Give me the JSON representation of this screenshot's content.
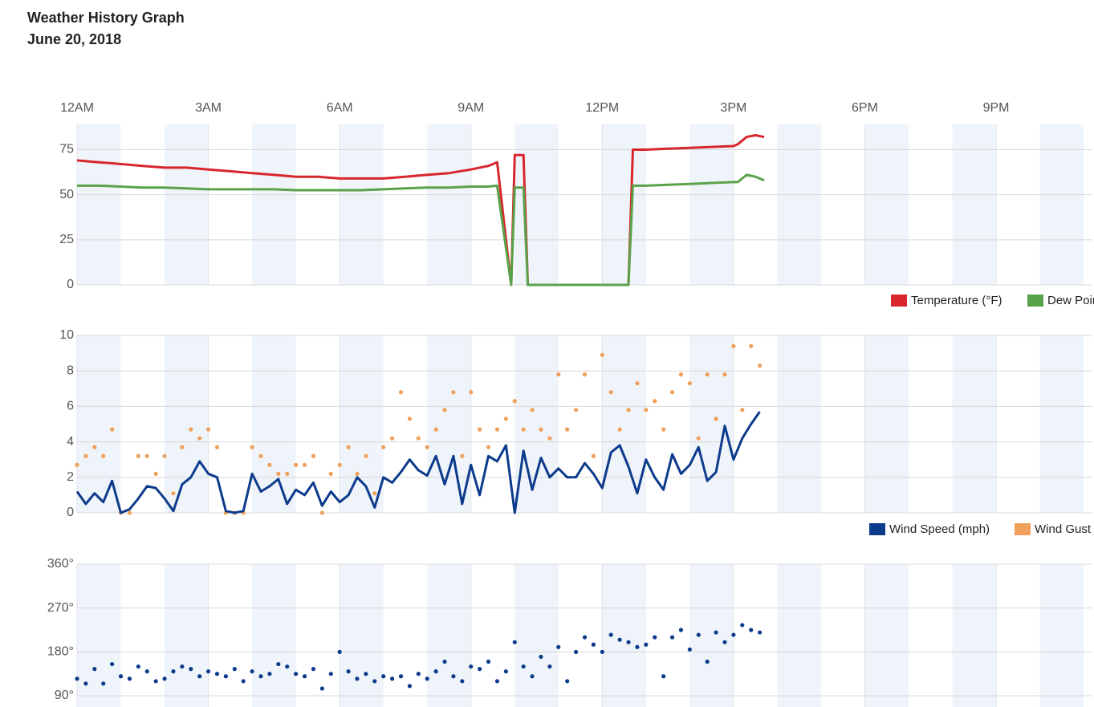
{
  "chart_data": [
    {
      "type": "line",
      "title": "Weather History Graph",
      "subtitle": "June 20, 2018",
      "x": [
        0,
        0.5,
        1,
        1.5,
        2,
        2.5,
        3,
        3.5,
        4,
        4.5,
        5,
        5.5,
        6,
        6.5,
        7,
        7.5,
        8,
        8.5,
        9,
        9.4,
        9.6,
        9.92,
        10.0,
        10.1,
        10.2,
        10.3,
        11,
        12,
        12.6,
        12.7,
        13,
        13.5,
        14,
        14.5,
        15,
        15.1,
        15.3,
        15.5,
        15.7
      ],
      "series": [
        {
          "name": "Temperature (°F)",
          "color": "#d9262c",
          "values": [
            69,
            68,
            67,
            66,
            65,
            65,
            64,
            63,
            62,
            61,
            60,
            60,
            59,
            59,
            59,
            60,
            61,
            62,
            64,
            66,
            68,
            0,
            72,
            72,
            72,
            0,
            0,
            0,
            0,
            75,
            75,
            75.5,
            76,
            76.5,
            77,
            78,
            82,
            83,
            82
          ]
        },
        {
          "name": "Dew Point",
          "color": "#5aa24a",
          "values": [
            55,
            55,
            54.5,
            54,
            54,
            53.5,
            53,
            53,
            53,
            53,
            52.5,
            52.5,
            52.5,
            52.5,
            53,
            53.5,
            54,
            54,
            54.5,
            54.5,
            55,
            0,
            54,
            54,
            54,
            0,
            0,
            0,
            0,
            55,
            55,
            55.5,
            56,
            56.5,
            57,
            57,
            61,
            60,
            58
          ]
        }
      ],
      "xlim": [
        0,
        23.2
      ],
      "xticks": [
        {
          "value": 0,
          "label": "12AM"
        },
        {
          "value": 3,
          "label": "3AM"
        },
        {
          "value": 6,
          "label": "6AM"
        },
        {
          "value": 9,
          "label": "9AM"
        },
        {
          "value": 12,
          "label": "12PM"
        },
        {
          "value": 15,
          "label": "3PM"
        },
        {
          "value": 18,
          "label": "6PM"
        },
        {
          "value": 21,
          "label": "9PM"
        }
      ],
      "ylim": [
        0,
        89
      ],
      "yticks": [
        0,
        25,
        50,
        75
      ],
      "grid": true,
      "legend": "bottom-right"
    },
    {
      "type": "line-scatter",
      "x": [
        0,
        0.2,
        0.4,
        0.6,
        0.8,
        1,
        1.2,
        1.4,
        1.6,
        1.8,
        2,
        2.2,
        2.4,
        2.6,
        2.8,
        3,
        3.2,
        3.4,
        3.6,
        3.8,
        4,
        4.2,
        4.4,
        4.6,
        4.8,
        5,
        5.2,
        5.4,
        5.6,
        5.8,
        6,
        6.2,
        6.4,
        6.6,
        6.8,
        7,
        7.2,
        7.4,
        7.6,
        7.8,
        8,
        8.2,
        8.4,
        8.6,
        8.8,
        9,
        9.2,
        9.4,
        9.6,
        9.8,
        10,
        10.2,
        10.4,
        10.6,
        10.8,
        11,
        11.2,
        11.4,
        11.6,
        11.8,
        12,
        12.2,
        12.4,
        12.6,
        12.8,
        13,
        13.2,
        13.4,
        13.6,
        13.8,
        14,
        14.2,
        14.4,
        14.6,
        14.8,
        15,
        15.2,
        15.4,
        15.6
      ],
      "series": [
        {
          "name": "Wind Speed (mph)",
          "color": "#0d3b8c",
          "values": [
            1.2,
            0.5,
            1.1,
            0.6,
            1.8,
            0,
            0.2,
            0.8,
            1.5,
            1.4,
            0.8,
            0.1,
            1.6,
            2,
            2.9,
            2.2,
            2,
            0.1,
            0,
            0.1,
            2.2,
            1.2,
            1.5,
            1.9,
            0.5,
            1.3,
            1,
            1.7,
            0.4,
            1.2,
            0.6,
            1,
            2,
            1.5,
            0.3,
            2,
            1.7,
            2.3,
            3,
            2.4,
            2.1,
            3.2,
            1.6,
            3.2,
            0.5,
            2.7,
            1,
            3.2,
            2.9,
            3.8,
            0,
            3.5,
            1.3,
            3.1,
            2,
            2.5,
            2,
            2,
            2.8,
            2.2,
            1.4,
            3.4,
            3.8,
            2.6,
            1.1,
            3,
            2,
            1.3,
            3.3,
            2.2,
            2.7,
            3.7,
            1.8,
            2.3,
            4.9,
            3,
            4.2,
            5,
            5.7
          ]
        },
        {
          "name": "Wind Gust",
          "color": "#f0a05a",
          "values": [
            2.7,
            3.2,
            3.7,
            3.2,
            4.7,
            0,
            0,
            3.2,
            3.2,
            2.2,
            3.2,
            1.1,
            3.7,
            4.7,
            4.2,
            4.7,
            3.7,
            0,
            0,
            0,
            3.7,
            3.2,
            2.7,
            2.2,
            2.2,
            2.7,
            2.7,
            3.2,
            0,
            2.2,
            2.7,
            3.7,
            2.2,
            3.2,
            1.1,
            3.7,
            4.2,
            6.8,
            5.3,
            4.2,
            3.7,
            4.7,
            5.8,
            6.8,
            3.2,
            6.8,
            4.7,
            3.7,
            4.7,
            5.3,
            6.3,
            4.7,
            5.8,
            4.7,
            4.2,
            7.8,
            4.7,
            5.8,
            7.8,
            3.2,
            8.9,
            6.8,
            4.7,
            5.8,
            7.3,
            5.8,
            6.3,
            4.7,
            6.8,
            7.8,
            7.3,
            4.2,
            7.8,
            5.3,
            7.8,
            9.4,
            5.8,
            9.4,
            8.3
          ]
        }
      ],
      "xlim": [
        0,
        23.2
      ],
      "ylim": [
        0,
        10
      ],
      "yticks": [
        0,
        2,
        4,
        6,
        8,
        10
      ],
      "grid": true,
      "legend": "bottom-right"
    },
    {
      "type": "scatter",
      "x": [
        0,
        0.2,
        0.4,
        0.6,
        0.8,
        1,
        1.2,
        1.4,
        1.6,
        1.8,
        2,
        2.2,
        2.4,
        2.6,
        2.8,
        3,
        3.2,
        3.4,
        3.6,
        3.8,
        4,
        4.2,
        4.4,
        4.6,
        4.8,
        5,
        5.2,
        5.4,
        5.6,
        5.8,
        6,
        6.2,
        6.4,
        6.6,
        6.8,
        7,
        7.2,
        7.4,
        7.6,
        7.8,
        8,
        8.2,
        8.4,
        8.6,
        8.8,
        9,
        9.2,
        9.4,
        9.6,
        9.8,
        10,
        10.2,
        10.4,
        10.6,
        10.8,
        11,
        11.2,
        11.4,
        11.6,
        11.8,
        12,
        12.2,
        12.4,
        12.6,
        12.8,
        13,
        13.2,
        13.4,
        13.6,
        13.8,
        14,
        14.2,
        14.4,
        14.6,
        14.8,
        15,
        15.2,
        15.4,
        15.6
      ],
      "series": [
        {
          "color": "#0d3b8c",
          "values": [
            125,
            115,
            145,
            115,
            155,
            130,
            125,
            150,
            140,
            120,
            125,
            140,
            150,
            145,
            130,
            140,
            135,
            130,
            145,
            120,
            140,
            130,
            135,
            155,
            150,
            135,
            130,
            145,
            105,
            135,
            180,
            140,
            125,
            135,
            120,
            130,
            125,
            130,
            110,
            135,
            125,
            140,
            160,
            130,
            120,
            150,
            145,
            160,
            120,
            140,
            200,
            150,
            130,
            170,
            150,
            190,
            120,
            180,
            210,
            195,
            180,
            215,
            205,
            200,
            190,
            195,
            210,
            130,
            210,
            225,
            185,
            215,
            160,
            220,
            200,
            215,
            235,
            225,
            220
          ]
        }
      ],
      "xlim": [
        0,
        23.2
      ],
      "ylim": [
        67,
        360
      ],
      "yticks": [
        {
          "value": 90,
          "label": "90°"
        },
        {
          "value": 180,
          "label": "180°"
        },
        {
          "value": 270,
          "label": "270°"
        },
        {
          "value": 360,
          "label": "360°"
        }
      ],
      "grid": true
    }
  ]
}
